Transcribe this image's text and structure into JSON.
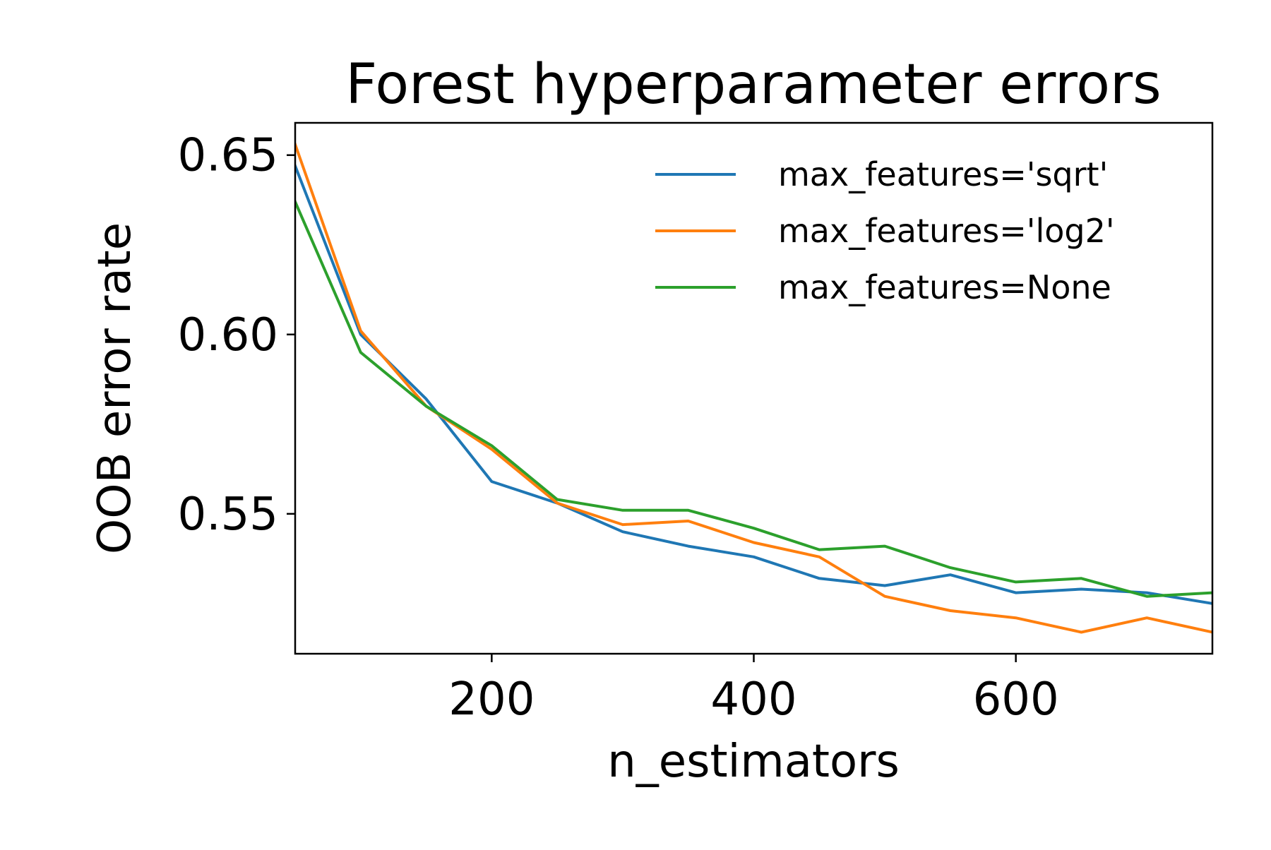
{
  "chart_data": {
    "type": "line",
    "title": "Forest hyperparameter errors",
    "xlabel": "n_estimators",
    "ylabel": "OOB error rate",
    "xlim": [
      50,
      750
    ],
    "ylim": [
      0.511,
      0.659
    ],
    "xticks": [
      200,
      400,
      600
    ],
    "xtick_labels": [
      "200",
      "400",
      "600"
    ],
    "yticks": [
      0.55,
      0.6,
      0.65
    ],
    "ytick_labels": [
      "0.55",
      "0.60",
      "0.65"
    ],
    "grid": false,
    "legend_position": "top-right",
    "x": [
      50,
      100,
      150,
      200,
      250,
      300,
      350,
      400,
      450,
      500,
      550,
      600,
      650,
      700,
      750
    ],
    "series": [
      {
        "name": "max_features='sqrt'",
        "color": "#1f77b4",
        "values": [
          0.647,
          0.6,
          0.582,
          0.559,
          0.553,
          0.545,
          0.541,
          0.538,
          0.532,
          0.53,
          0.533,
          0.528,
          0.529,
          0.528,
          0.525
        ]
      },
      {
        "name": "max_features='log2'",
        "color": "#ff7f0e",
        "values": [
          0.653,
          0.601,
          0.58,
          0.568,
          0.553,
          0.547,
          0.548,
          0.542,
          0.538,
          0.527,
          0.523,
          0.521,
          0.517,
          0.521,
          0.517
        ]
      },
      {
        "name": "max_features=None",
        "color": "#2ca02c",
        "values": [
          0.637,
          0.595,
          0.58,
          0.569,
          0.554,
          0.551,
          0.551,
          0.546,
          0.54,
          0.541,
          0.535,
          0.531,
          0.532,
          0.527,
          0.528
        ]
      }
    ]
  }
}
